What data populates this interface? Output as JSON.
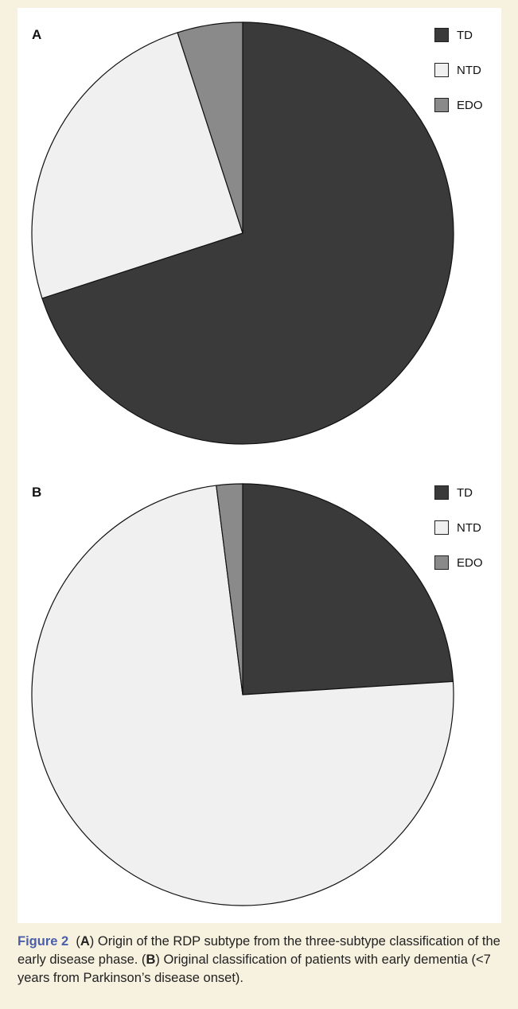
{
  "chart_data": [
    {
      "type": "pie",
      "panel_label": "A",
      "categories": [
        "TD",
        "NTD",
        "EDO"
      ],
      "values": [
        70,
        25,
        5
      ],
      "colors": [
        "#3a3a3a",
        "#f0f0f0",
        "#8a8a8a"
      ],
      "legend": {
        "placement": "top-right",
        "entries": [
          "TD",
          "NTD",
          "EDO"
        ]
      }
    },
    {
      "type": "pie",
      "panel_label": "B",
      "categories": [
        "TD",
        "NTD",
        "EDO"
      ],
      "values": [
        24,
        74,
        2
      ],
      "colors": [
        "#3a3a3a",
        "#f0f0f0",
        "#8a8a8a"
      ],
      "legend": {
        "placement": "top-right",
        "entries": [
          "TD",
          "NTD",
          "EDO"
        ]
      }
    }
  ],
  "caption": {
    "figure_label": "Figure 2",
    "part_a_open": "(",
    "part_a_letter": "A",
    "part_a_text": ") Origin of the RDP subtype from the three-subtype classification of the early disease phase. (",
    "part_b_letter": "B",
    "part_b_text": ") Original classification of patients with early dementia (<7 years from Parkinson’s disease onset)."
  }
}
